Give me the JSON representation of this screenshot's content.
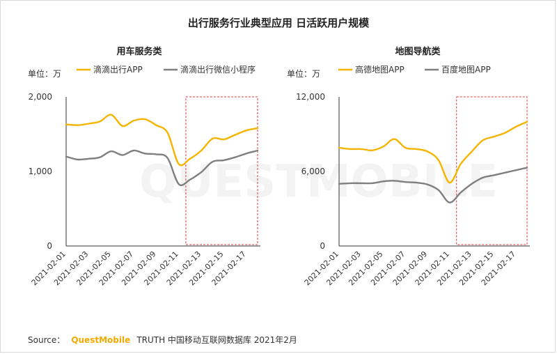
{
  "title": "出行服务行业典型应用 日活跃用户规模",
  "source": {
    "prefix": "Source：",
    "brand": "QuestMobile",
    "suffix": "TRUTH 中国移动互联网数据库 2021年2月"
  },
  "watermark": "QUESTMOBILE",
  "colors": {
    "yellow": "#f5b400",
    "gray": "#7f7f7f",
    "highlight": "#e0393e"
  },
  "chart_data": [
    {
      "type": "line",
      "title": "用车服务类",
      "unit_label": "单位：万",
      "x": [
        "2021-02-01",
        "2021-02-02",
        "2021-02-03",
        "2021-02-04",
        "2021-02-05",
        "2021-02-06",
        "2021-02-07",
        "2021-02-08",
        "2021-02-09",
        "2021-02-10",
        "2021-02-11",
        "2021-02-12",
        "2021-02-13",
        "2021-02-14",
        "2021-02-15",
        "2021-02-16",
        "2021-02-17",
        "2021-02-18"
      ],
      "x_tick_labels": [
        "2021-02-01",
        "2021-02-03",
        "2021-02-05",
        "2021-02-07",
        "2021-02-09",
        "2021-02-11",
        "2021-02-13",
        "2021-02-15",
        "2021-02-17"
      ],
      "y_ticks": [
        "0",
        "1,000",
        "2,000"
      ],
      "ylim": [
        0,
        2000
      ],
      "series": [
        {
          "name": "滴滴出行APP",
          "color": "#f5b400",
          "values": [
            1630,
            1620,
            1640,
            1670,
            1760,
            1610,
            1680,
            1700,
            1620,
            1520,
            1100,
            1170,
            1280,
            1440,
            1430,
            1490,
            1550,
            1580
          ]
        },
        {
          "name": "滴滴出行微信小程序",
          "color": "#7f7f7f",
          "values": [
            1200,
            1160,
            1170,
            1190,
            1270,
            1220,
            1280,
            1240,
            1230,
            1180,
            830,
            890,
            990,
            1130,
            1150,
            1190,
            1240,
            1280
          ]
        }
      ],
      "highlight_range": [
        "2021-02-12",
        "2021-02-18"
      ]
    },
    {
      "type": "line",
      "title": "地图导航类",
      "unit_label": "单位：万",
      "x": [
        "2021-02-01",
        "2021-02-02",
        "2021-02-03",
        "2021-02-04",
        "2021-02-05",
        "2021-02-06",
        "2021-02-07",
        "2021-02-08",
        "2021-02-09",
        "2021-02-10",
        "2021-02-11",
        "2021-02-12",
        "2021-02-13",
        "2021-02-14",
        "2021-02-15",
        "2021-02-16",
        "2021-02-17",
        "2021-02-18"
      ],
      "x_tick_labels": [
        "2021-02-01",
        "2021-02-03",
        "2021-02-05",
        "2021-02-07",
        "2021-02-09",
        "2021-02-11",
        "2021-02-13",
        "2021-02-15",
        "2021-02-17"
      ],
      "y_ticks": [
        "0",
        "6,000",
        "12,000"
      ],
      "ylim": [
        0,
        12000
      ],
      "series": [
        {
          "name": "高德地图APP",
          "color": "#f5b400",
          "values": [
            7900,
            7800,
            7800,
            7700,
            8000,
            8600,
            7900,
            7800,
            7600,
            6900,
            5100,
            6600,
            7600,
            8500,
            8800,
            9100,
            9600,
            10000
          ]
        },
        {
          "name": "百度地图APP",
          "color": "#7f7f7f",
          "values": [
            5000,
            5050,
            5050,
            5050,
            5200,
            5250,
            5150,
            5100,
            4950,
            4500,
            3500,
            4300,
            5000,
            5500,
            5700,
            5900,
            6100,
            6300
          ]
        }
      ],
      "highlight_range": [
        "2021-02-12",
        "2021-02-18"
      ]
    }
  ]
}
